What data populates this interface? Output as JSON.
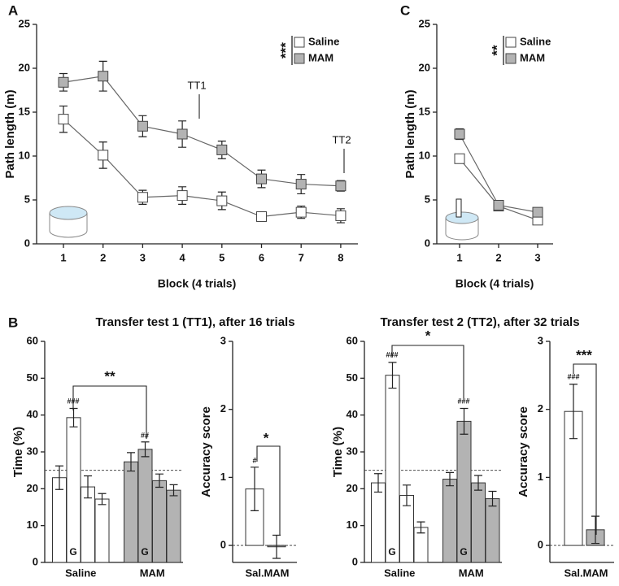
{
  "chart_data": [
    {
      "type": "line",
      "panel": "A",
      "categories": [
        "1",
        "2",
        "3",
        "4",
        "5",
        "6",
        "7",
        "8"
      ],
      "series": [
        {
          "name": "Saline",
          "color": "#ffffff",
          "values": [
            14.2,
            10.1,
            5.3,
            5.5,
            4.9,
            3.1,
            3.6,
            3.2
          ],
          "errors": [
            1.5,
            1.5,
            0.8,
            1.0,
            1.0,
            0.4,
            0.7,
            0.8
          ]
        },
        {
          "name": "MAM",
          "color": "#b3b3b3",
          "values": [
            18.4,
            19.1,
            13.4,
            12.5,
            10.7,
            7.4,
            6.8,
            6.6
          ],
          "errors": [
            1.0,
            1.7,
            1.2,
            1.5,
            1.0,
            1.0,
            1.1,
            0.6
          ]
        }
      ],
      "ylim": [
        0,
        25
      ],
      "yticks": [
        0,
        5,
        10,
        15,
        20,
        25
      ],
      "ylabel": "Path length (m)",
      "xlabel": "Block (4 trials)",
      "annotations": [
        "***",
        "TT1",
        "TT2"
      ]
    },
    {
      "type": "line",
      "panel": "C",
      "categories": [
        "1",
        "2",
        "3"
      ],
      "series": [
        {
          "name": "Saline",
          "color": "#ffffff",
          "values": [
            9.7,
            4.3,
            2.7
          ],
          "errors": [
            0.4,
            0.3,
            0.3
          ]
        },
        {
          "name": "MAM",
          "color": "#b3b3b3",
          "values": [
            12.5,
            4.4,
            3.6
          ],
          "errors": [
            0.6,
            0.4,
            0.3
          ]
        }
      ],
      "ylim": [
        0,
        25
      ],
      "yticks": [
        0,
        5,
        10,
        15,
        20,
        25
      ],
      "ylabel": "Path length (m)",
      "xlabel": "Block (4 trials)",
      "annotations": [
        "**"
      ]
    },
    {
      "type": "grouped_bar",
      "panel": "B",
      "title": "Transfer test 1 (TT1), after 16 trials",
      "series": [
        {
          "name": "Saline",
          "color": "#ffffff",
          "values": [
            23,
            39.3,
            20.5,
            17.2
          ],
          "errors": [
            3.2,
            2.5,
            3,
            1.5
          ]
        },
        {
          "name": "MAM",
          "color": "#b3b3b3",
          "values": [
            27.3,
            30.7,
            22.2,
            19.6
          ],
          "errors": [
            2.5,
            2,
            1.8,
            1.5
          ]
        }
      ],
      "ylim": [
        0,
        60
      ],
      "yticks": [
        0,
        10,
        20,
        30,
        40,
        50,
        60
      ],
      "ylabel": "Time (%)",
      "reference_line": 25,
      "annotations": [
        "###",
        "G",
        "##",
        "G",
        "**"
      ]
    },
    {
      "type": "bar",
      "categories": [
        "Sal.",
        "MAM"
      ],
      "values": [
        0.83,
        -0.02
      ],
      "errors": [
        0.32,
        0.17
      ],
      "colors": [
        "#ffffff",
        "#b3b3b3"
      ],
      "ylim": [
        -0.25,
        3
      ],
      "yticks": [
        0,
        1,
        2,
        3
      ],
      "ylabel": "Accuracy score",
      "reference_line": 0,
      "annotations": [
        "#",
        "*"
      ]
    },
    {
      "type": "grouped_bar",
      "title": "Transfer test 2 (TT2), after 32 trials",
      "series": [
        {
          "name": "Saline",
          "color": "#ffffff",
          "values": [
            21.6,
            50.8,
            18.2,
            9.5
          ],
          "errors": [
            2.5,
            3.5,
            2.8,
            1.5
          ]
        },
        {
          "name": "MAM",
          "color": "#b3b3b3",
          "values": [
            22.6,
            38.3,
            21.6,
            17.3
          ],
          "errors": [
            1.8,
            3.5,
            2,
            2
          ]
        }
      ],
      "ylim": [
        0,
        60
      ],
      "yticks": [
        0,
        10,
        20,
        30,
        40,
        50,
        60
      ],
      "ylabel": "Time (%)",
      "reference_line": 25,
      "annotations": [
        "###",
        "G",
        "###",
        "G",
        "*"
      ]
    },
    {
      "type": "bar",
      "categories": [
        "Sal.",
        "MAM"
      ],
      "values": [
        1.97,
        0.23
      ],
      "errors": [
        0.4,
        0.2
      ],
      "colors": [
        "#ffffff",
        "#b3b3b3"
      ],
      "ylim": [
        -0.25,
        3
      ],
      "yticks": [
        0,
        1,
        2,
        3
      ],
      "ylabel": "Accuracy score",
      "reference_line": 0,
      "annotations": [
        "###",
        "***"
      ]
    }
  ]
}
